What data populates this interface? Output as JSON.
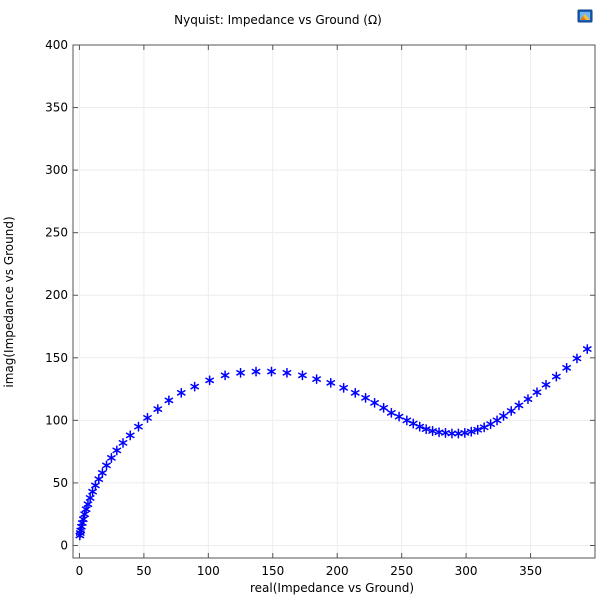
{
  "chart_data": {
    "type": "scatter",
    "title": "Nyquist: Impedance vs Ground (Ω)",
    "xlabel": "real(Impedance vs Ground)",
    "ylabel": "imag(Impedance vs Ground)",
    "xlim": [
      -5,
      400
    ],
    "ylim": [
      -10,
      400
    ],
    "xticks": [
      0,
      50,
      100,
      150,
      200,
      250,
      300,
      350
    ],
    "yticks": [
      0,
      50,
      100,
      150,
      200,
      250,
      300,
      350,
      400
    ],
    "grid": true,
    "marker": "asterisk",
    "color": "#0000ff",
    "points": [
      [
        0.3,
        8
      ],
      [
        0.6,
        10
      ],
      [
        1.0,
        12
      ],
      [
        1.5,
        15
      ],
      [
        2.2,
        18
      ],
      [
        3.0,
        21
      ],
      [
        4.0,
        25
      ],
      [
        5.2,
        29
      ],
      [
        6.6,
        33
      ],
      [
        8.3,
        38
      ],
      [
        10.2,
        43
      ],
      [
        12.4,
        48
      ],
      [
        15.0,
        53
      ],
      [
        17.8,
        58
      ],
      [
        21.0,
        64
      ],
      [
        24.8,
        70
      ],
      [
        29.0,
        76
      ],
      [
        33.8,
        82
      ],
      [
        39.4,
        88
      ],
      [
        45.8,
        95
      ],
      [
        52.8,
        102
      ],
      [
        60.8,
        109
      ],
      [
        69.4,
        116
      ],
      [
        79.0,
        122
      ],
      [
        89.4,
        127
      ],
      [
        101.0,
        132
      ],
      [
        113.0,
        136
      ],
      [
        125.0,
        138
      ],
      [
        137.0,
        139
      ],
      [
        149.0,
        139
      ],
      [
        161.0,
        138
      ],
      [
        173.0,
        136
      ],
      [
        184.0,
        133
      ],
      [
        195.0,
        130
      ],
      [
        205.0,
        126
      ],
      [
        214.0,
        122
      ],
      [
        222.0,
        118
      ],
      [
        229.0,
        114
      ],
      [
        236.0,
        110
      ],
      [
        242.0,
        106
      ],
      [
        248.0,
        103
      ],
      [
        254.0,
        100
      ],
      [
        259.0,
        97.5
      ],
      [
        264.0,
        95
      ],
      [
        269.0,
        93
      ],
      [
        274.0,
        91.5
      ],
      [
        279.0,
        90.5
      ],
      [
        284.0,
        90
      ],
      [
        289.0,
        89.5
      ],
      [
        294.0,
        89.5
      ],
      [
        299.0,
        90
      ],
      [
        304.0,
        91
      ],
      [
        309.0,
        92.5
      ],
      [
        314.0,
        94.5
      ],
      [
        319.0,
        97
      ],
      [
        324.0,
        100
      ],
      [
        329.0,
        103.5
      ],
      [
        335.0,
        107.5
      ],
      [
        341.0,
        112
      ],
      [
        348.0,
        117
      ],
      [
        355.0,
        122.5
      ],
      [
        362.0,
        128.5
      ],
      [
        370.0,
        135
      ],
      [
        378.0,
        142
      ],
      [
        386.0,
        149.5
      ],
      [
        394.0,
        157
      ]
    ]
  }
}
